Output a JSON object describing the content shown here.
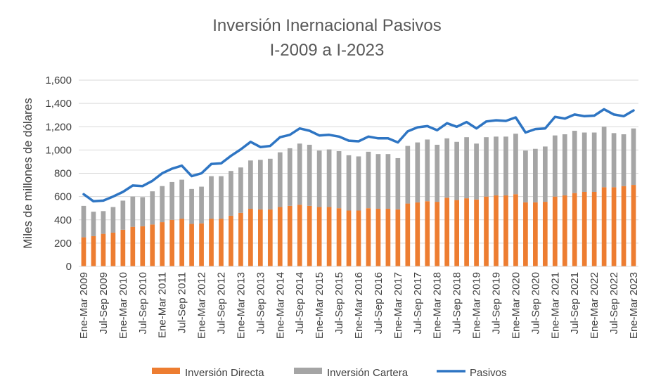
{
  "chart_data": {
    "type": "bar",
    "title": "Inversión Inernacional Pasivos",
    "subtitle": "I-2009 a I-2023",
    "ylabel": "Miles de millones de dólares",
    "xlabel": "",
    "ylim": [
      0,
      1600
    ],
    "yticks": [
      0,
      200,
      400,
      600,
      800,
      1000,
      1200,
      1400,
      1600
    ],
    "ytick_labels": [
      "0",
      "200",
      "400",
      "600",
      "800",
      "1,000",
      "1,200",
      "1,400",
      "1,600"
    ],
    "grid": true,
    "legend_position": "bottom",
    "colors": {
      "directa": "#ED7D31",
      "cartera": "#A5A5A5",
      "pasivos": "#2E75C3"
    },
    "categories": [
      "Ene-Mar 2009",
      "Abr-Jun 2009",
      "Jul-Sep 2009",
      "Oct-Dic 2009",
      "Ene-Mar 2010",
      "Abr-Jun 2010",
      "Jul-Sep 2010",
      "Oct-Dic 2010",
      "Ene-Mar 2011",
      "Abr-Jun 2011",
      "Jul-Sep 2011",
      "Oct-Dic 2011",
      "Ene-Mar 2012",
      "Abr-Jun 2012",
      "Jul-Sep 2012",
      "Oct-Dic 2012",
      "Ene-Mar 2013",
      "Abr-Jun 2013",
      "Jul-Sep 2013",
      "Oct-Dic 2013",
      "Ene-Mar 2014",
      "Abr-Jun 2014",
      "Jul-Sep 2014",
      "Oct-Dic 2014",
      "Ene-Mar 2015",
      "Abr-Jun 2015",
      "Jul-Sep 2015",
      "Oct-Dic 2015",
      "Ene-Mar 2016",
      "Abr-Jun 2016",
      "Jul-Sep 2016",
      "Oct-Dic 2016",
      "Ene-Mar 2017",
      "Abr-Jun 2017",
      "Jul-Sep 2017",
      "Oct-Dic 2017",
      "Ene-Mar 2018",
      "Abr-Jun 2018",
      "Jul-Sep 2018",
      "Oct-Dic 2018",
      "Ene-Mar 2019",
      "Abr-Jun 2019",
      "Jul-Sep 2019",
      "Oct-Dic 2019",
      "Ene-Mar 2020",
      "Abr-Jun 2020",
      "Jul-Sep 2020",
      "Oct-Dic 2020",
      "Ene-Mar 2021",
      "Abr-Jun 2021",
      "Jul-Sep 2021",
      "Oct-Dic 2021",
      "Ene-Mar 2022",
      "Abr-Jun 2022",
      "Jul-Sep 2022",
      "Oct-Dic 2022",
      "Ene-Mar 2023"
    ],
    "shown_tick_labels": [
      "Ene-Mar 2009",
      "Jul-Sep 2009",
      "Ene-Mar 2010",
      "Jul-Sep 2010",
      "Ene-Mar 2011",
      "Jul-Sep 2011",
      "Ene-Mar 2012",
      "Jul-Sep 2012",
      "Ene-Mar 2013",
      "Jul-Sep 2013",
      "Ene-Mar 2014",
      "Jul-Sep 2014",
      "Ene-Mar 2015",
      "Jul-Sep 2015",
      "Ene-Mar 2016",
      "Jul-Sep 2016",
      "Ene-Mar 2017",
      "Jul-Sep 2017",
      "Ene-Mar 2018",
      "Jul-Sep 2018",
      "Ene-Mar 2019",
      "Jul-Sep 2019",
      "Ene-Mar 2020",
      "Jul-Sep 2020",
      "Ene-Mar 2021",
      "Jul-Sep 2021",
      "Ene-Mar 2022",
      "Jul-Sep 2022",
      "Ene-Mar 2023"
    ],
    "series": [
      {
        "name": "Inversión Directa",
        "type": "bar",
        "stack": "total",
        "values": [
          250,
          260,
          280,
          290,
          315,
          340,
          345,
          360,
          380,
          400,
          410,
          365,
          370,
          410,
          410,
          435,
          460,
          495,
          490,
          490,
          510,
          520,
          530,
          520,
          510,
          510,
          500,
          480,
          480,
          500,
          495,
          495,
          490,
          540,
          550,
          560,
          555,
          590,
          570,
          585,
          575,
          600,
          610,
          610,
          620,
          550,
          550,
          555,
          600,
          610,
          630,
          640,
          640,
          680,
          680,
          690,
          700
        ]
      },
      {
        "name": "Inversión Cartera",
        "type": "bar",
        "stack": "total",
        "values": [
          270,
          210,
          195,
          220,
          250,
          260,
          250,
          285,
          310,
          325,
          335,
          300,
          315,
          365,
          365,
          385,
          390,
          415,
          425,
          435,
          470,
          495,
          525,
          525,
          485,
          495,
          490,
          475,
          465,
          485,
          470,
          470,
          440,
          495,
          515,
          530,
          490,
          510,
          500,
          525,
          480,
          510,
          505,
          505,
          520,
          445,
          460,
          475,
          525,
          525,
          535,
          510,
          510,
          520,
          465,
          445,
          485
        ]
      },
      {
        "name": "Pasivos",
        "type": "line",
        "values": [
          620,
          560,
          565,
          600,
          640,
          695,
          690,
          735,
          800,
          840,
          865,
          775,
          800,
          880,
          885,
          950,
          1005,
          1070,
          1025,
          1035,
          1110,
          1130,
          1185,
          1165,
          1125,
          1130,
          1115,
          1080,
          1075,
          1115,
          1100,
          1100,
          1065,
          1160,
          1195,
          1205,
          1170,
          1230,
          1200,
          1240,
          1185,
          1245,
          1255,
          1250,
          1280,
          1150,
          1180,
          1185,
          1285,
          1270,
          1305,
          1290,
          1295,
          1350,
          1305,
          1290,
          1340
        ]
      }
    ]
  }
}
